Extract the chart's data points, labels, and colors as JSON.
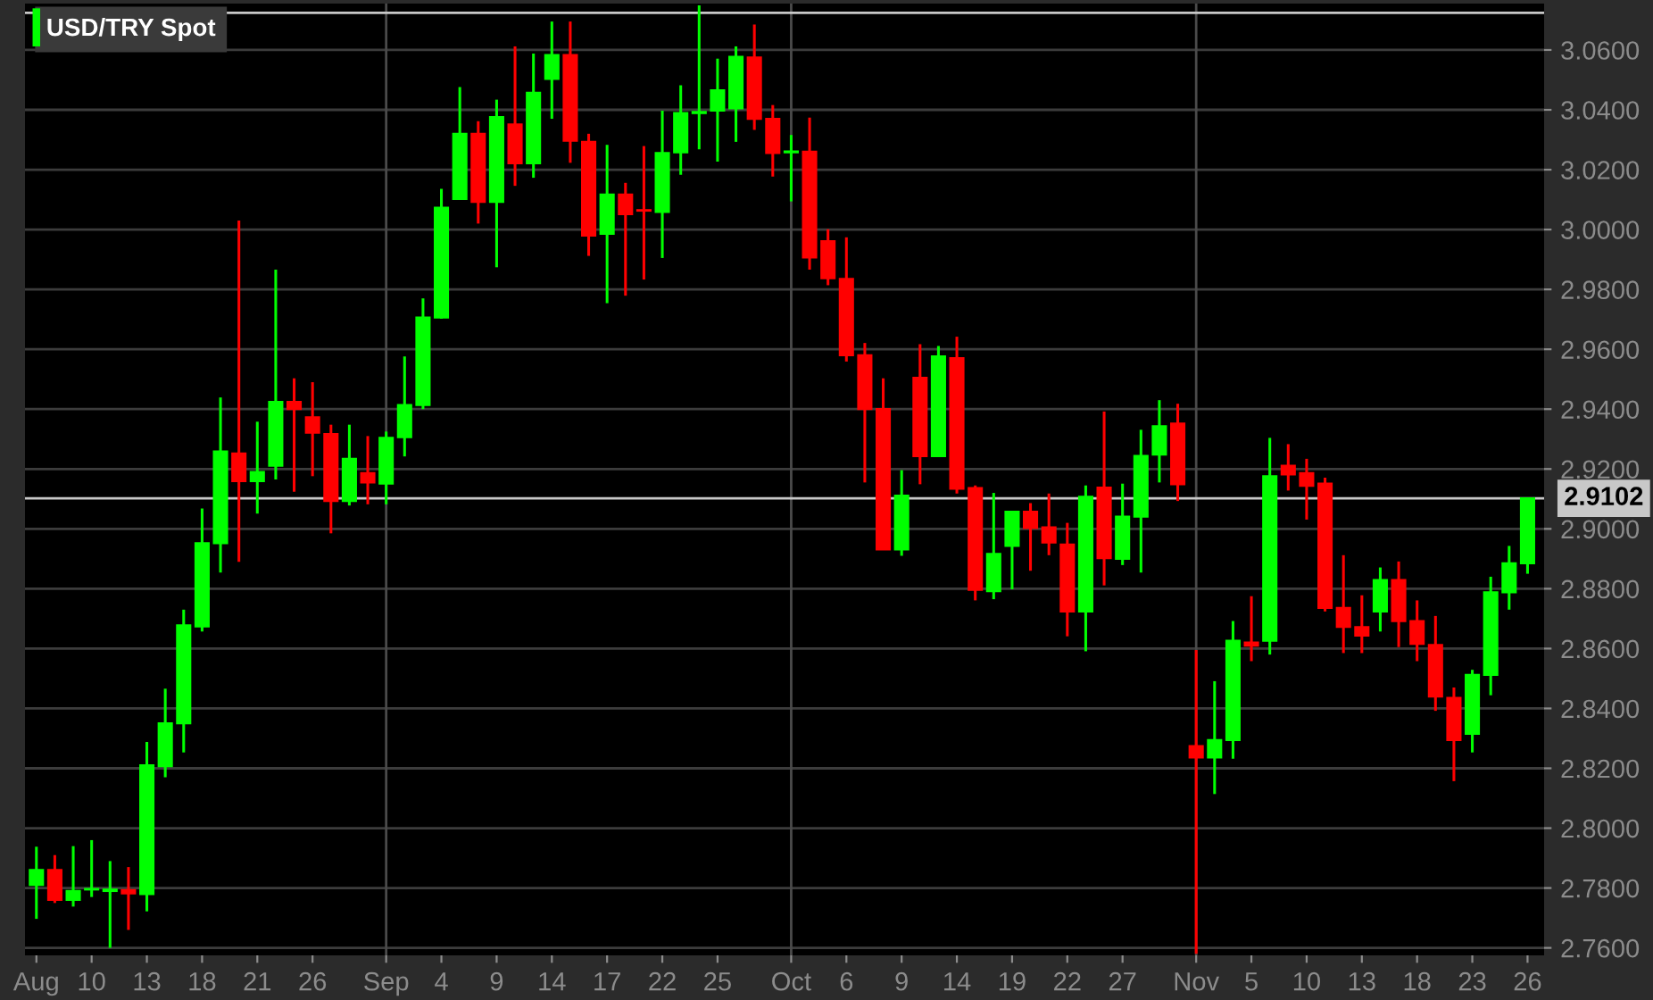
{
  "chart_data": {
    "type": "candlestick",
    "title": "USD/TRY Spot",
    "categories": [
      "Aug",
      null,
      null,
      "10",
      null,
      null,
      "13",
      null,
      null,
      "18",
      null,
      null,
      "21",
      null,
      null,
      "26",
      null,
      null,
      null,
      "Sep",
      null,
      null,
      "4",
      null,
      null,
      "9",
      null,
      null,
      "14",
      null,
      null,
      "17",
      null,
      null,
      "22",
      null,
      null,
      "25",
      null,
      null,
      null,
      "Oct",
      null,
      null,
      "6",
      null,
      null,
      "9",
      null,
      null,
      "14",
      null,
      null,
      "19",
      null,
      null,
      "22",
      null,
      null,
      "27",
      null,
      null,
      null,
      "Nov",
      null,
      null,
      "5",
      null,
      null,
      "10",
      null,
      null,
      "13",
      null,
      null,
      "18",
      null,
      null,
      "23",
      null,
      null,
      "26"
    ],
    "ohlc": [
      [
        2.781,
        2.7938,
        2.7697,
        2.786
      ],
      [
        2.786,
        2.791,
        2.775,
        2.776
      ],
      [
        2.776,
        2.794,
        2.7738,
        2.779
      ],
      [
        2.7795,
        2.796,
        2.777,
        2.7797
      ],
      [
        2.779,
        2.789,
        2.76,
        2.7795
      ],
      [
        2.7793,
        2.787,
        2.766,
        2.7782
      ],
      [
        2.778,
        2.8288,
        2.7722,
        2.821
      ],
      [
        2.8207,
        2.8466,
        2.817,
        2.835
      ],
      [
        2.835,
        2.873,
        2.8253,
        2.8678
      ],
      [
        2.8674,
        2.9068,
        2.8657,
        2.8952
      ],
      [
        2.8952,
        2.9439,
        2.8854,
        2.9259
      ],
      [
        2.9252,
        3.003,
        2.889,
        2.9159
      ],
      [
        2.9159,
        2.9358,
        2.9051,
        2.919
      ],
      [
        2.9211,
        2.9866,
        2.9165,
        2.9424
      ],
      [
        2.9424,
        2.9503,
        2.9124,
        2.94
      ],
      [
        2.9373,
        2.949,
        2.9176,
        2.9321
      ],
      [
        2.9317,
        2.9348,
        2.8985,
        2.9093
      ],
      [
        2.9093,
        2.9348,
        2.9078,
        2.9234
      ],
      [
        2.9186,
        2.931,
        2.9082,
        2.9155
      ],
      [
        2.9151,
        2.9325,
        2.9082,
        2.9304
      ],
      [
        2.9306,
        2.9576,
        2.9242,
        2.9414
      ],
      [
        2.9414,
        2.977,
        2.94,
        2.9706
      ],
      [
        2.9706,
        3.0136,
        2.9702,
        3.0073
      ],
      [
        3.0102,
        3.0476,
        3.0102,
        3.032
      ],
      [
        3.032,
        3.0362,
        3.002,
        3.0092
      ],
      [
        3.0092,
        3.0434,
        2.9874,
        3.0376
      ],
      [
        3.0351,
        3.0612,
        3.0146,
        3.0221
      ],
      [
        3.0221,
        3.0588,
        3.0173,
        3.0457
      ],
      [
        3.0503,
        3.0695,
        3.037,
        3.0583
      ],
      [
        3.0583,
        3.0695,
        3.0223,
        3.0297
      ],
      [
        3.0293,
        3.032,
        2.9912,
        2.998
      ],
      [
        2.9986,
        3.0283,
        2.9754,
        3.0117
      ],
      [
        3.0117,
        3.0156,
        2.9779,
        3.0051
      ],
      [
        3.0065,
        3.0279,
        2.9833,
        3.0063
      ],
      [
        3.0059,
        3.0397,
        2.9905,
        3.0256
      ],
      [
        3.0258,
        3.0482,
        3.0183,
        3.0389
      ],
      [
        3.0389,
        3.0749,
        3.0268,
        3.0393
      ],
      [
        3.0397,
        3.0571,
        3.0227,
        3.0465
      ],
      [
        3.0405,
        3.0612,
        3.0293,
        3.0577
      ],
      [
        3.0575,
        3.0685,
        3.0333,
        3.037
      ],
      [
        3.037,
        3.0416,
        3.0177,
        3.0256
      ],
      [
        3.0258,
        3.0316,
        3.0094,
        3.0261
      ],
      [
        3.026,
        3.0374,
        2.9866,
        2.9907
      ],
      [
        2.9961,
        3.0001,
        2.9814,
        2.9837
      ],
      [
        2.9835,
        2.9974,
        2.9559,
        2.958
      ],
      [
        2.958,
        2.9621,
        2.9155,
        2.94
      ],
      [
        2.94,
        2.9503,
        2.8931,
        2.8931
      ],
      [
        2.8931,
        2.9196,
        2.891,
        2.9111
      ],
      [
        2.9505,
        2.9617,
        2.9149,
        2.9243
      ],
      [
        2.9243,
        2.9611,
        2.9243,
        2.9576
      ],
      [
        2.957,
        2.9642,
        2.9118,
        2.9134
      ],
      [
        2.9136,
        2.9145,
        2.8761,
        2.8796
      ],
      [
        2.8792,
        2.912,
        2.8765,
        2.8916
      ],
      [
        2.8943,
        2.9057,
        2.8798,
        2.9057
      ],
      [
        2.9057,
        2.9086,
        2.886,
        2.9003
      ],
      [
        2.9005,
        2.9118,
        2.8912,
        2.8954
      ],
      [
        2.8948,
        2.902,
        2.8641,
        2.8724
      ],
      [
        2.8724,
        2.9145,
        2.8591,
        2.9107
      ],
      [
        2.9138,
        2.9392,
        2.8811,
        2.8902
      ],
      [
        2.89,
        2.9151,
        2.8879,
        2.9041
      ],
      [
        2.9041,
        2.9331,
        2.8854,
        2.9244
      ],
      [
        2.9248,
        2.943,
        2.9155,
        2.9343
      ],
      [
        2.9352,
        2.9418,
        2.9093,
        2.9149
      ],
      [
        2.8274,
        2.8595,
        2.758,
        2.8236
      ],
      [
        2.8236,
        2.8491,
        2.8114,
        2.8294
      ],
      [
        2.8294,
        2.8692,
        2.8232,
        2.8626
      ],
      [
        2.862,
        2.8775,
        2.8558,
        2.861
      ],
      [
        2.8626,
        2.9304,
        2.858,
        2.9176
      ],
      [
        2.9211,
        2.9283,
        2.9128,
        2.9182
      ],
      [
        2.9186,
        2.9234,
        2.9031,
        2.9144
      ],
      [
        2.9151,
        2.9171,
        2.8724,
        2.8736
      ],
      [
        2.8736,
        2.8912,
        2.8585,
        2.8672
      ],
      [
        2.8672,
        2.8778,
        2.8585,
        2.8643
      ],
      [
        2.8724,
        2.8871,
        2.8657,
        2.8829
      ],
      [
        2.8829,
        2.8891,
        2.8605,
        2.8692
      ],
      [
        2.8692,
        2.8761,
        2.8558,
        2.8616
      ],
      [
        2.8612,
        2.8709,
        2.8392,
        2.844
      ],
      [
        2.8435,
        2.847,
        2.8157,
        2.8294
      ],
      [
        2.8315,
        2.8529,
        2.8253,
        2.8512
      ],
      [
        2.8512,
        2.884,
        2.8444,
        2.8788
      ],
      [
        2.8788,
        2.8943,
        2.873,
        2.8885
      ],
      [
        2.8885,
        2.9102,
        2.885,
        2.9102
      ]
    ],
    "colors": [
      "#00ff00",
      "#ff0000",
      "#00ff00",
      "#00ff00",
      "#00ff00",
      "#ff0000",
      "#00ff00",
      "#00ff00",
      "#00ff00",
      "#00ff00",
      "#00ff00",
      "#ff0000",
      "#00ff00",
      "#00ff00",
      "#ff0000",
      "#ff0000",
      "#ff0000",
      "#00ff00",
      "#ff0000",
      "#00ff00",
      "#00ff00",
      "#00ff00",
      "#00ff00",
      "#00ff00",
      "#ff0000",
      "#00ff00",
      "#ff0000",
      "#00ff00",
      "#00ff00",
      "#ff0000",
      "#ff0000",
      "#00ff00",
      "#ff0000",
      "#ff0000",
      "#00ff00",
      "#00ff00",
      "#00ff00",
      "#00ff00",
      "#00ff00",
      "#ff0000",
      "#ff0000",
      "#00ff00",
      "#ff0000",
      "#ff0000",
      "#ff0000",
      "#ff0000",
      "#ff0000",
      "#00ff00",
      "#ff0000",
      "#00ff00",
      "#ff0000",
      "#ff0000",
      "#00ff00",
      "#00ff00",
      "#ff0000",
      "#ff0000",
      "#ff0000",
      "#00ff00",
      "#ff0000",
      "#00ff00",
      "#00ff00",
      "#00ff00",
      "#ff0000",
      "#ff0000",
      "#00ff00",
      "#00ff00",
      "#ff0000",
      "#00ff00",
      "#ff0000",
      "#ff0000",
      "#ff0000",
      "#ff0000",
      "#ff0000",
      "#00ff00",
      "#ff0000",
      "#ff0000",
      "#ff0000",
      "#ff0000",
      "#00ff00",
      "#00ff00",
      "#00ff00",
      "#00ff00"
    ],
    "ylim": [
      2.7575,
      3.0755
    ],
    "yticks": [
      {
        "value": 2.76,
        "label": "2.7600"
      },
      {
        "value": 2.78,
        "label": "2.7800"
      },
      {
        "value": 2.8,
        "label": "2.8000"
      },
      {
        "value": 2.82,
        "label": "2.8200"
      },
      {
        "value": 2.84,
        "label": "2.8400"
      },
      {
        "value": 2.86,
        "label": "2.8600"
      },
      {
        "value": 2.88,
        "label": "2.8800"
      },
      {
        "value": 2.9,
        "label": "2.9000"
      },
      {
        "value": 2.92,
        "label": "2.9200"
      },
      {
        "value": 2.94,
        "label": "2.9400"
      },
      {
        "value": 2.96,
        "label": "2.9600"
      },
      {
        "value": 2.98,
        "label": "2.9800"
      },
      {
        "value": 3.0,
        "label": "3.0000"
      },
      {
        "value": 3.02,
        "label": "3.0200"
      },
      {
        "value": 3.04,
        "label": "3.0400"
      },
      {
        "value": 3.06,
        "label": "3.0600"
      }
    ],
    "grid": "y",
    "ref_lines": [
      {
        "axis": "x",
        "value": "Sep",
        "color": "#4a4a4a"
      },
      {
        "axis": "x",
        "value": "Oct",
        "color": "#4a4a4a"
      },
      {
        "axis": "x",
        "value": "Nov",
        "color": "#4a4a4a"
      },
      {
        "axis": "y",
        "value": 3.0724,
        "color": "#c8c8c8"
      },
      {
        "axis": "y",
        "value": 2.9102,
        "label": "2.9102",
        "color": "#c8c8c8"
      }
    ]
  }
}
